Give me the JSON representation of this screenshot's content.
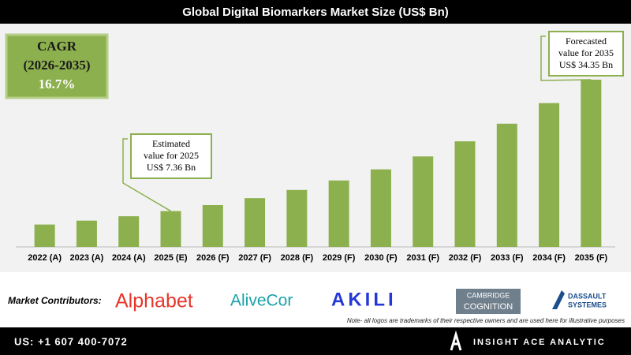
{
  "chart_data": {
    "type": "bar",
    "title": "Global Digital Biomarkers Market Size (US$ Bn)",
    "categories": [
      "2022 (A)",
      "2023 (A)",
      "2024 (A)",
      "2025 (E)",
      "2026 (F)",
      "2027 (F)",
      "2028 (F)",
      "2029 (F)",
      "2030 (F)",
      "2031 (F)",
      "2032 (F)",
      "2033 (F)",
      "2034 (F)",
      "2035 (F)"
    ],
    "values": [
      4.6,
      5.4,
      6.3,
      7.36,
      8.59,
      10.02,
      11.7,
      13.65,
      15.93,
      18.59,
      21.69,
      25.31,
      29.54,
      34.35
    ],
    "color": "#8db04f",
    "cagr": {
      "label": "CAGR",
      "period": "(2026-2035)",
      "value": "16.7%"
    },
    "annotations": [
      {
        "lines": [
          "Estimated",
          "value for 2025",
          "US$ 7.36 Bn"
        ]
      },
      {
        "lines": [
          "Forecasted",
          "value for 2035",
          "US$ 34.35 Bn"
        ]
      }
    ]
  },
  "footer": {
    "contributors_label": "Market Contributors:",
    "logos": [
      "Alphabet",
      "AliveCor",
      "AKILI",
      "CAMBRIDGE",
      "COGNITION",
      "DASSAULT",
      "SYSTEMES"
    ],
    "note": "Note- all logos are trademarks of their respective owners and are used here for illustrative purposes",
    "phone": "US: +1 607 400-7072",
    "brand": "INSIGHT ACE ANALYTIC"
  }
}
